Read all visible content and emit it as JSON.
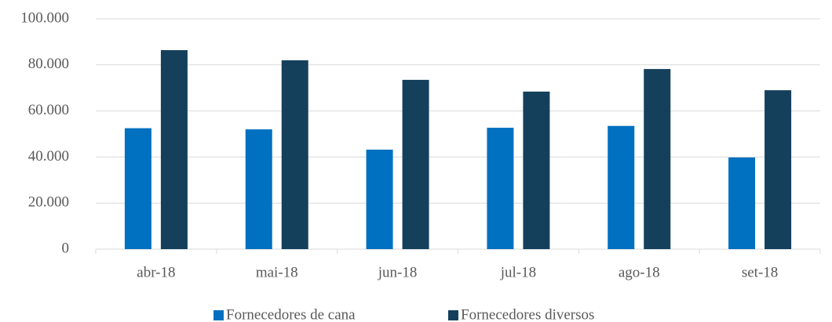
{
  "chart_data": {
    "type": "bar",
    "categories": [
      "abr-18",
      "mai-18",
      "jun-18",
      "jul-18",
      "ago-18",
      "set-18"
    ],
    "series": [
      {
        "name": "Fornecedores de cana",
        "color": "#0070c0",
        "values": [
          52500,
          52000,
          43200,
          52700,
          53500,
          39800
        ]
      },
      {
        "name": "Fornecedores diversos",
        "color": "#15405c",
        "values": [
          86400,
          82000,
          73500,
          68400,
          78200,
          69000
        ]
      }
    ],
    "ylim": [
      0,
      100000
    ],
    "yticks": [
      0,
      {
        "value": 20000,
        "label": "20.000"
      },
      {
        "value": 40000,
        "label": "40.000"
      },
      {
        "value": 60000,
        "label": "60.000"
      },
      {
        "value": 80000,
        "label": "80.000"
      },
      {
        "value": 100000,
        "label": "100.000"
      }
    ],
    "grid": true,
    "legend": "bottom"
  }
}
